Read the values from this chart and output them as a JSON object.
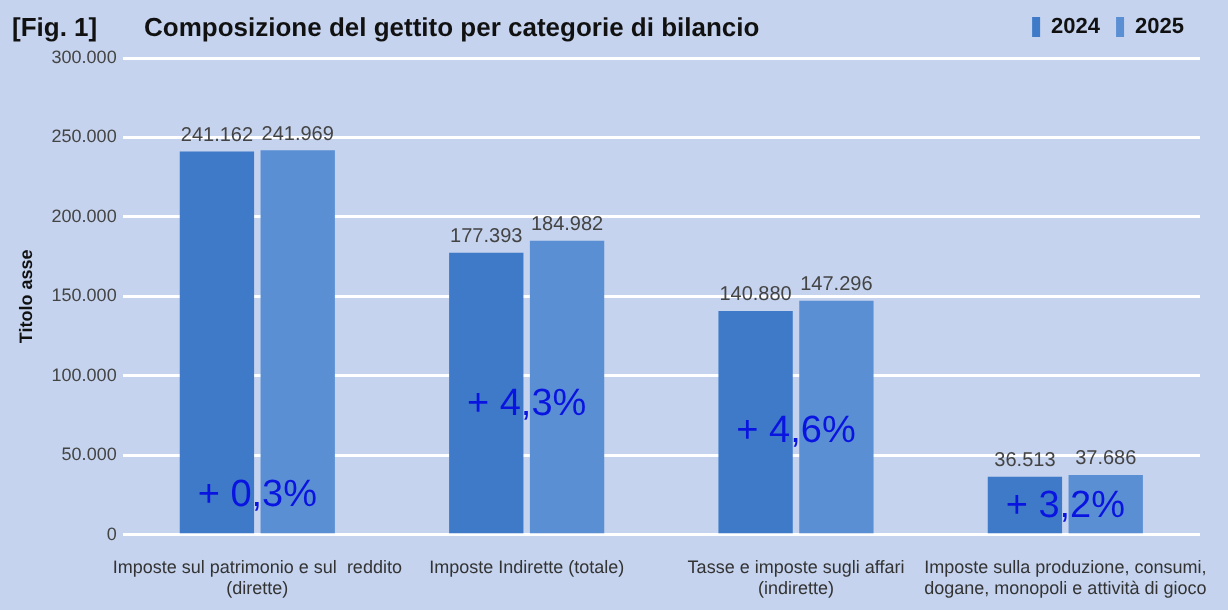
{
  "chart_data": {
    "type": "bar",
    "title": "Composizione del gettito per categorie di bilancio",
    "ylabel": "Titolo asse",
    "categories": [
      "Imposte sul patrimonio e sul  reddito\n(dirette)",
      "Imposte Indirette (totale)",
      "Tasse e imposte sugli affari\n(indirette)",
      "Imposte sulla produzione, consumi,\ndogane, monopoli e attività di gioco"
    ],
    "series": [
      {
        "name": "2024",
        "color": "#3f7ac8",
        "values": [
          241162,
          177393,
          140880,
          36513
        ],
        "value_labels": [
          "241.162",
          "177.393",
          "140.880",
          "36.513"
        ]
      },
      {
        "name": "2025",
        "color": "#5b8fd4",
        "values": [
          241969,
          184982,
          147296,
          37686
        ],
        "value_labels": [
          "241.969",
          "184.982",
          "147.296",
          "37.686"
        ]
      }
    ],
    "ylim": [
      0,
      300000
    ],
    "yticks": [
      {
        "value": 0,
        "label": "0"
      },
      {
        "value": 50000,
        "label": "50.000"
      },
      {
        "value": 100000,
        "label": "100.000"
      },
      {
        "value": 150000,
        "label": "150.000"
      },
      {
        "value": 200000,
        "label": "200.000"
      },
      {
        "value": 250000,
        "label": "250.000"
      },
      {
        "value": 300000,
        "label": "300.000"
      }
    ],
    "grid": "y",
    "legend": "top right",
    "annotations": [
      "[Fig. 1]",
      {
        "text": "+ 0,3%",
        "x": "Imposte sul patrimonio e sul  reddito\n(dirette)",
        "y": 25000
      },
      {
        "text": "+ 4,3%",
        "x": "Imposte Indirette (totale)",
        "y": 82000
      },
      {
        "text": "+ 4,6%",
        "x": "Tasse e imposte sugli affari\n(indirette)",
        "y": 65000
      },
      {
        "text": "+ 3,2%",
        "x": "Imposte sulla produzione, consumi,\ndogane, monopoli e attività di gioco",
        "y": 18000
      }
    ]
  }
}
